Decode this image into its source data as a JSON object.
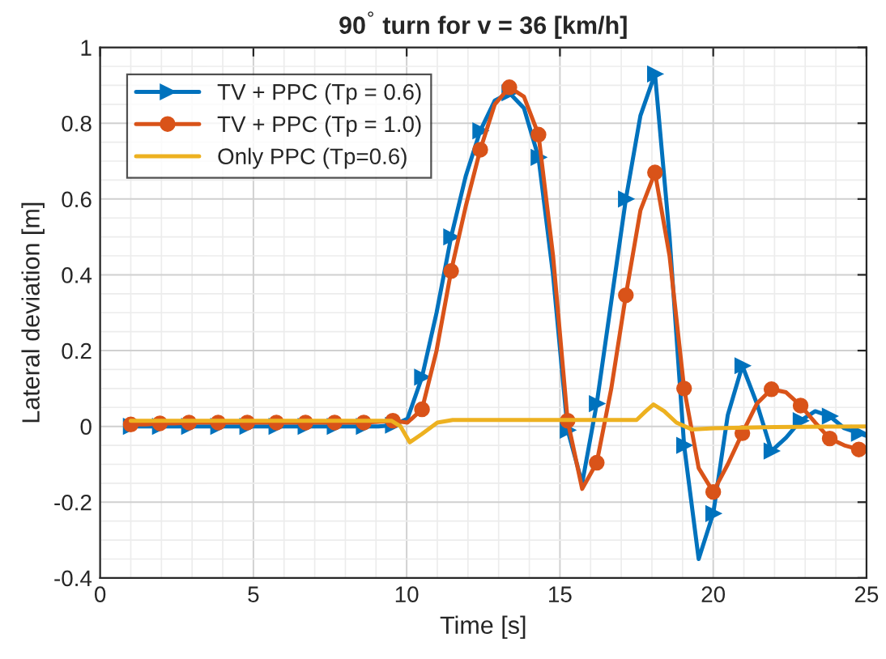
{
  "chart_data": {
    "type": "line",
    "title": "90$^{°}$ turn for v = 36 [km/h]",
    "xlabel": "Time [s]",
    "ylabel": "Lateral deviation [m]",
    "xlim": [
      0,
      25
    ],
    "xticks": [
      0,
      5,
      10,
      15,
      20,
      25
    ],
    "ylim": [
      -0.4,
      1
    ],
    "yticks": [
      -0.4,
      -0.2,
      0,
      0.2,
      0.4,
      0.6,
      0.8,
      1
    ],
    "grid": true,
    "legend": "top left",
    "series": [
      {
        "name": "TV + PPC (Tp = 0.6)",
        "color": "#0072bd",
        "marker": "triangle",
        "x": [
          1.0,
          1.475,
          1.95,
          2.425,
          2.9,
          3.375,
          3.85,
          4.325,
          4.8,
          5.275,
          5.75,
          6.225,
          6.7,
          7.175,
          7.65,
          8.125,
          8.6,
          9.075,
          9.55,
          10.025,
          10.5,
          10.975,
          11.45,
          11.925,
          12.4,
          12.875,
          13.35,
          13.825,
          14.3,
          14.775,
          15.25,
          15.725,
          16.2,
          16.675,
          17.15,
          17.625,
          18.1,
          18.575,
          19.05,
          19.525,
          20.0,
          20.475,
          20.95,
          21.425,
          21.9,
          22.375,
          22.85,
          23.325,
          23.8,
          24.275,
          24.75,
          25.0
        ],
        "values": [
          0,
          0,
          0,
          0,
          0,
          0,
          0,
          0,
          0,
          0,
          0,
          0,
          0,
          0,
          0,
          0,
          0,
          0,
          0.003,
          0.02,
          0.13,
          0.3,
          0.5,
          0.66,
          0.78,
          0.86,
          0.88,
          0.84,
          0.71,
          0.4,
          -0.01,
          -0.15,
          0.06,
          0.33,
          0.6,
          0.82,
          0.93,
          0.5,
          -0.05,
          -0.35,
          -0.23,
          0.03,
          0.16,
          0.06,
          -0.065,
          -0.03,
          0.015,
          0.04,
          0.027,
          -0.005,
          -0.018,
          -0.025
        ]
      },
      {
        "name": "TV + PPC (Tp = 1.0)",
        "color": "#d95319",
        "marker": "circle",
        "x": [
          1.0,
          1.475,
          1.95,
          2.425,
          2.9,
          3.375,
          3.85,
          4.325,
          4.8,
          5.275,
          5.75,
          6.225,
          6.7,
          7.175,
          7.65,
          8.125,
          8.6,
          9.075,
          9.55,
          10.025,
          10.5,
          10.975,
          11.45,
          11.925,
          12.4,
          12.875,
          13.35,
          13.825,
          14.3,
          14.775,
          15.25,
          15.725,
          16.2,
          16.675,
          17.15,
          17.625,
          18.1,
          18.575,
          19.05,
          19.525,
          20.0,
          20.475,
          20.95,
          21.425,
          21.9,
          22.375,
          22.85,
          23.325,
          23.8,
          24.275,
          24.75,
          25.0
        ],
        "values": [
          0.005,
          0.005,
          0.008,
          0.008,
          0.01,
          0.01,
          0.01,
          0.01,
          0.01,
          0.01,
          0.01,
          0.01,
          0.01,
          0.01,
          0.01,
          0.01,
          0.01,
          0.012,
          0.015,
          0.01,
          0.045,
          0.2,
          0.41,
          0.58,
          0.73,
          0.85,
          0.895,
          0.87,
          0.77,
          0.45,
          0.015,
          -0.165,
          -0.096,
          0.1,
          0.346,
          0.57,
          0.67,
          0.45,
          0.1,
          -0.11,
          -0.173,
          -0.1,
          -0.018,
          0.06,
          0.098,
          0.09,
          0.055,
          0.01,
          -0.032,
          -0.05,
          -0.061,
          -0.062
        ]
      },
      {
        "name": "Only PPC (Tp=0.6)",
        "color": "#edb120",
        "marker": "none",
        "x": [
          1,
          9.5,
          9.8,
          10.1,
          10.5,
          11.0,
          11.5,
          17.5,
          17.8,
          18.05,
          18.4,
          18.8,
          19.3,
          20,
          22,
          25
        ],
        "values": [
          0.015,
          0.015,
          0.0,
          -0.042,
          -0.02,
          0.01,
          0.017,
          0.017,
          0.04,
          0.058,
          0.04,
          0.01,
          -0.008,
          -0.005,
          -0.002,
          0.0
        ]
      }
    ]
  }
}
